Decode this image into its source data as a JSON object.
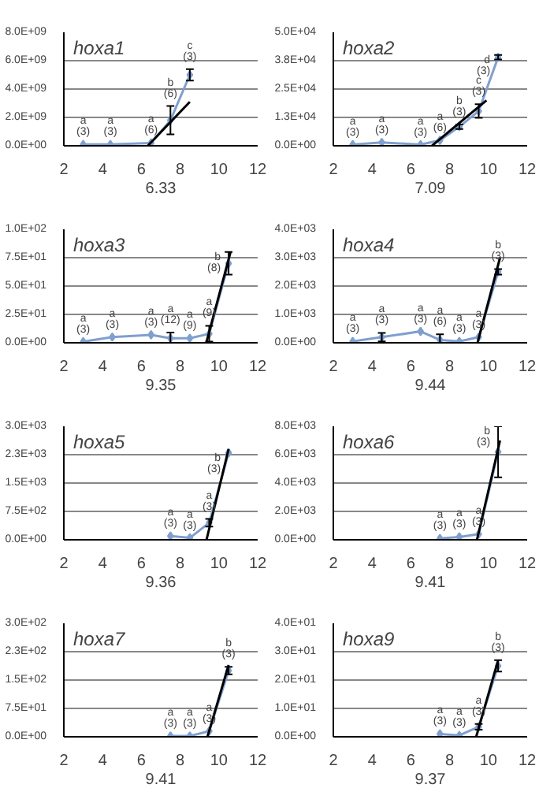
{
  "chart_data": [
    {
      "type": "line",
      "title": "hoxa1",
      "xlabel": "6.33",
      "x": [
        3,
        4.4,
        6.5,
        7.5,
        8.5
      ],
      "xlim": [
        2,
        12
      ],
      "xticks": [
        2,
        4,
        6,
        8,
        10,
        12
      ],
      "ylim": [
        0,
        8000000000
      ],
      "yticks": [
        {
          "value": 0,
          "label": "0.0E+00"
        },
        {
          "value": 2000000000,
          "label": "2.0E+09"
        },
        {
          "value": 4000000000,
          "label": "4.0E+09"
        },
        {
          "value": 6000000000,
          "label": "6.0E+09"
        },
        {
          "value": 8000000000,
          "label": "8.0E+09"
        }
      ],
      "grid": "y",
      "marker": "diamond",
      "series": [
        {
          "color": "#7f9fcf",
          "values": [
            100000000,
            100000000,
            200000000,
            1800000000,
            5000000000
          ],
          "errors": [
            null,
            null,
            null,
            1000000000,
            400000000
          ]
        },
        {
          "type": "line",
          "marker": "none",
          "color": "#000000",
          "x": [
            6.33,
            8.5
          ],
          "values": [
            0,
            3100000000
          ]
        }
      ],
      "annotations": [
        {
          "text": "a\n(3)",
          "x": 3,
          "y": 100000000
        },
        {
          "text": "a\n(3)",
          "x": 4.4,
          "y": 100000000
        },
        {
          "text": "a\n(6)",
          "x": 6.5,
          "y": 200000000
        },
        {
          "text": "b\n(6)",
          "x": 7.5,
          "y": 2800000000
        },
        {
          "text": "c\n(3)",
          "x": 8.5,
          "y": 5400000000
        }
      ]
    },
    {
      "type": "line",
      "title": "hoxa2",
      "xlabel": "7.09",
      "x": [
        3,
        4.5,
        6.5,
        7.5,
        8.5,
        9.5,
        10.5
      ],
      "xlim": [
        2,
        12
      ],
      "xticks": [
        2,
        4,
        6,
        8,
        10,
        12
      ],
      "ylim": [
        0,
        50000
      ],
      "yticks": [
        {
          "value": 0,
          "label": "0.0E+00"
        },
        {
          "value": 12500,
          "label": "1.3E+04"
        },
        {
          "value": 25000,
          "label": "2.5E+04"
        },
        {
          "value": 37500,
          "label": "3.8E+04"
        },
        {
          "value": 50000,
          "label": "5.0E+04"
        }
      ],
      "grid": "y",
      "marker": "diamond",
      "series": [
        {
          "color": "#7f9fcf",
          "values": [
            500,
            1500,
            500,
            2400,
            8400,
            15300,
            39000
          ],
          "errors": [
            null,
            null,
            null,
            null,
            1000,
            3000,
            1000
          ]
        },
        {
          "type": "line",
          "marker": "none",
          "color": "#000000",
          "x": [
            7.09,
            9.9
          ],
          "values": [
            0,
            20000
          ]
        }
      ],
      "annotations": [
        {
          "text": "a\n(3)",
          "x": 3,
          "y": 500
        },
        {
          "text": "a\n(3)",
          "x": 4.5,
          "y": 1500
        },
        {
          "text": "a\n(3)",
          "x": 6.5,
          "y": 500
        },
        {
          "text": "a\n(6)",
          "x": 7.5,
          "y": 2400
        },
        {
          "text": "b\n(3)",
          "x": 8.5,
          "y": 9400
        },
        {
          "text": "c\n(3)",
          "x": 9.5,
          "y": 18300
        },
        {
          "text": "d\n(3)",
          "x": 10.5,
          "y": 40000
        }
      ]
    },
    {
      "type": "line",
      "title": "hoxa3",
      "xlabel": "9.35",
      "x": [
        3,
        4.5,
        6.5,
        7.5,
        8.5,
        9.5,
        10.5
      ],
      "xlim": [
        2,
        12
      ],
      "xticks": [
        2,
        4,
        6,
        8,
        10,
        12
      ],
      "ylim": [
        0,
        100
      ],
      "yticks": [
        {
          "value": 0,
          "label": "0.0E+00"
        },
        {
          "value": 25,
          "label": "2.5E+01"
        },
        {
          "value": 50,
          "label": "5.0E+01"
        },
        {
          "value": 75,
          "label": "7.5E+01"
        },
        {
          "value": 100,
          "label": "1.0E+02"
        }
      ],
      "grid": "y",
      "marker": "diamond",
      "series": [
        {
          "color": "#7f9fcf",
          "values": [
            1,
            5,
            7,
            4,
            4,
            8,
            70
          ],
          "errors": [
            null,
            null,
            null,
            5,
            null,
            7,
            10
          ]
        },
        {
          "type": "line",
          "marker": "none",
          "color": "#000000",
          "x": [
            9.35,
            10.6
          ],
          "values": [
            0,
            80
          ]
        }
      ],
      "annotations": [
        {
          "text": "a\n(3)",
          "x": 3,
          "y": 1
        },
        {
          "text": "a\n(3)",
          "x": 4.5,
          "y": 5
        },
        {
          "text": "a\n(3)",
          "x": 6.5,
          "y": 7
        },
        {
          "text": "a\n(12)",
          "x": 7.5,
          "y": 9
        },
        {
          "text": "a\n(9)",
          "x": 8.5,
          "y": 4
        },
        {
          "text": "a\n(9)",
          "x": 9.5,
          "y": 15
        },
        {
          "text": "b\n(8)",
          "x": 10.5,
          "y": 80
        }
      ]
    },
    {
      "type": "line",
      "title": "hoxa4",
      "xlabel": "9.44",
      "x": [
        3,
        4.5,
        6.5,
        7.5,
        8.5,
        9.5,
        10.5
      ],
      "xlim": [
        2,
        12
      ],
      "xticks": [
        2,
        4,
        6,
        8,
        10,
        12
      ],
      "ylim": [
        0,
        4000
      ],
      "yticks": [
        {
          "value": 0,
          "label": "0.0E+00"
        },
        {
          "value": 1000,
          "label": "1.0E+03"
        },
        {
          "value": 2000,
          "label": "2.0E+03"
        },
        {
          "value": 3000,
          "label": "3.0E+03"
        },
        {
          "value": 4000,
          "label": "4.0E+03"
        }
      ],
      "grid": "y",
      "marker": "diamond",
      "series": [
        {
          "color": "#7f9fcf",
          "values": [
            50,
            200,
            400,
            100,
            50,
            200,
            2500
          ],
          "errors": [
            null,
            150,
            null,
            200,
            null,
            null,
            100
          ]
        },
        {
          "type": "line",
          "marker": "none",
          "color": "#000000",
          "x": [
            9.44,
            10.6
          ],
          "values": [
            0,
            3000
          ]
        }
      ],
      "annotations": [
        {
          "text": "a\n(3)",
          "x": 3,
          "y": 50
        },
        {
          "text": "a\n(3)",
          "x": 4.5,
          "y": 350
        },
        {
          "text": "a\n(3)",
          "x": 6.5,
          "y": 400
        },
        {
          "text": "a\n(6)",
          "x": 7.5,
          "y": 300
        },
        {
          "text": "a\n(3)",
          "x": 8.5,
          "y": 50
        },
        {
          "text": "a\n(3)",
          "x": 9.5,
          "y": 200
        },
        {
          "text": "b\n(3)",
          "x": 10.5,
          "y": 2600
        }
      ]
    },
    {
      "type": "line",
      "title": "hoxa5",
      "xlabel": "9.36",
      "x": [
        7.5,
        8.5,
        9.5,
        10.5
      ],
      "xlim": [
        2,
        12
      ],
      "xticks": [
        2,
        4,
        6,
        8,
        10,
        12
      ],
      "ylim": [
        0,
        3000
      ],
      "yticks": [
        {
          "value": 0,
          "label": "0.0E+00"
        },
        {
          "value": 750,
          "label": "7.5E+02"
        },
        {
          "value": 1500,
          "label": "1.5E+03"
        },
        {
          "value": 2250,
          "label": "2.3E+03"
        },
        {
          "value": 3000,
          "label": "3.0E+03"
        }
      ],
      "grid": "y",
      "marker": "diamond",
      "series": [
        {
          "color": "#7f9fcf",
          "values": [
            100,
            50,
            450,
            2300
          ],
          "errors": [
            null,
            null,
            100,
            null
          ]
        },
        {
          "type": "line",
          "marker": "none",
          "color": "#000000",
          "x": [
            9.36,
            10.5
          ],
          "values": [
            0,
            2400
          ]
        }
      ],
      "annotations": [
        {
          "text": "a\n(3)",
          "x": 7.5,
          "y": 100
        },
        {
          "text": "a\n(3)",
          "x": 8.5,
          "y": 50
        },
        {
          "text": "a\n(3)",
          "x": 9.5,
          "y": 550
        },
        {
          "text": "b\n(3)",
          "x": 10.5,
          "y": 2300
        }
      ]
    },
    {
      "type": "line",
      "title": "hoxa6",
      "xlabel": "9.41",
      "x": [
        7.5,
        8.5,
        9.5,
        10.5
      ],
      "xlim": [
        2,
        12
      ],
      "xticks": [
        2,
        4,
        6,
        8,
        10,
        12
      ],
      "ylim": [
        0,
        8000
      ],
      "yticks": [
        {
          "value": 0,
          "label": "0.0E+00"
        },
        {
          "value": 2000,
          "label": "2.0E+03"
        },
        {
          "value": 4000,
          "label": "4.0E+03"
        },
        {
          "value": 6000,
          "label": "6.0E+03"
        },
        {
          "value": 8000,
          "label": "8.0E+03"
        }
      ],
      "grid": "y",
      "marker": "diamond",
      "series": [
        {
          "color": "#7f9fcf",
          "values": [
            100,
            200,
            400,
            6200
          ],
          "errors": [
            null,
            null,
            null,
            1800
          ]
        },
        {
          "type": "line",
          "marker": "none",
          "color": "#000000",
          "x": [
            9.41,
            10.6
          ],
          "values": [
            0,
            7000
          ]
        }
      ],
      "annotations": [
        {
          "text": "a\n(3)",
          "x": 7.5,
          "y": 100
        },
        {
          "text": "a\n(3)",
          "x": 8.5,
          "y": 200
        },
        {
          "text": "a\n(3)",
          "x": 9.5,
          "y": 400
        },
        {
          "text": "b\n(3)",
          "x": 10.5,
          "y": 8000
        }
      ]
    },
    {
      "type": "line",
      "title": "hoxa7",
      "xlabel": "9.41",
      "x": [
        7.5,
        8.5,
        9.5,
        10.5
      ],
      "xlim": [
        2,
        12
      ],
      "xticks": [
        2,
        4,
        6,
        8,
        10,
        12
      ],
      "ylim": [
        0,
        300
      ],
      "yticks": [
        {
          "value": 0,
          "label": "0.0E+00"
        },
        {
          "value": 75,
          "label": "7.5E+01"
        },
        {
          "value": 150,
          "label": "1.5E+02"
        },
        {
          "value": 225,
          "label": "2.3E+02"
        },
        {
          "value": 300,
          "label": "3.0E+02"
        }
      ],
      "grid": "y",
      "marker": "diamond",
      "series": [
        {
          "color": "#7f9fcf",
          "values": [
            2,
            2,
            15,
            175
          ],
          "errors": [
            null,
            null,
            null,
            10
          ]
        },
        {
          "type": "line",
          "marker": "none",
          "color": "#000000",
          "x": [
            9.41,
            10.5
          ],
          "values": [
            0,
            190
          ]
        }
      ],
      "annotations": [
        {
          "text": "a\n(3)",
          "x": 7.5,
          "y": 2
        },
        {
          "text": "a\n(3)",
          "x": 8.5,
          "y": 2
        },
        {
          "text": "a\n(3)",
          "x": 9.5,
          "y": 15
        },
        {
          "text": "b\n(3)",
          "x": 10.5,
          "y": 185
        }
      ]
    },
    {
      "type": "line",
      "title": "hoxa9",
      "xlabel": "9.37",
      "x": [
        7.5,
        8.5,
        9.5,
        10.5
      ],
      "xlim": [
        2,
        12
      ],
      "xticks": [
        2,
        4,
        6,
        8,
        10,
        12
      ],
      "ylim": [
        0,
        40
      ],
      "yticks": [
        {
          "value": 0,
          "label": "0.0E+00"
        },
        {
          "value": 10,
          "label": "1.0E+01"
        },
        {
          "value": 20,
          "label": "2.0E+01"
        },
        {
          "value": 30,
          "label": "3.0E+01"
        },
        {
          "value": 40,
          "label": "4.0E+01"
        }
      ],
      "grid": "y",
      "marker": "diamond",
      "series": [
        {
          "color": "#7f9fcf",
          "values": [
            1,
            0.5,
            3.5,
            25
          ],
          "errors": [
            null,
            null,
            1,
            2
          ]
        },
        {
          "type": "line",
          "marker": "none",
          "color": "#000000",
          "x": [
            9.37,
            10.5
          ],
          "values": [
            0,
            27
          ]
        }
      ],
      "annotations": [
        {
          "text": "a\n(3)",
          "x": 7.5,
          "y": 1
        },
        {
          "text": "a\n(3)",
          "x": 8.5,
          "y": 0.5
        },
        {
          "text": "a\n(3)",
          "x": 9.5,
          "y": 4.5
        },
        {
          "text": "b\n(3)",
          "x": 10.5,
          "y": 27
        }
      ]
    }
  ]
}
